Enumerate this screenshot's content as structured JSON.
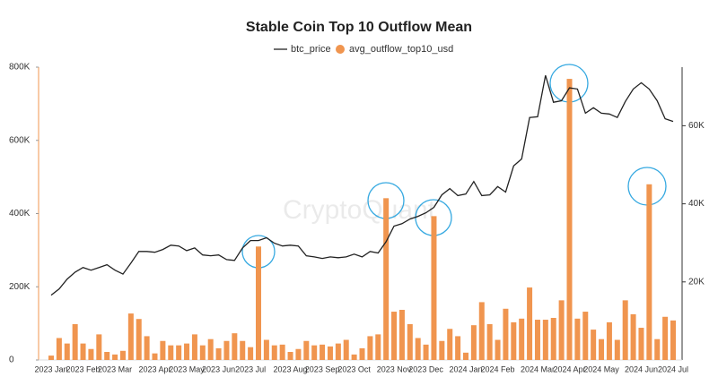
{
  "chart_data": {
    "type": "bar_line",
    "title": "Stable Coin Top 10 Outflow Mean",
    "watermark": "CryptoQuant",
    "categories": [
      "2023 Jan",
      null,
      null,
      null,
      "2023 Feb",
      null,
      null,
      null,
      "2023 Mar",
      null,
      null,
      null,
      null,
      "2023 Apr",
      null,
      null,
      null,
      "2023 May",
      null,
      null,
      null,
      "2023 Jun",
      null,
      null,
      null,
      "2023 Jul",
      null,
      null,
      null,
      null,
      "2023 Aug",
      null,
      null,
      null,
      "2023 Sep",
      null,
      null,
      null,
      "2023 Oct",
      null,
      null,
      null,
      null,
      "2023 Nov",
      null,
      null,
      null,
      "2023 Dec",
      null,
      null,
      null,
      null,
      "2024 Jan",
      null,
      null,
      null,
      "2024 Feb",
      null,
      null,
      null,
      null,
      "2024 Mar",
      null,
      null,
      null,
      "2024 Apr",
      null,
      null,
      null,
      "2024 May",
      null,
      null,
      null,
      null,
      "2024 Jun",
      null,
      null,
      null,
      "2024 Jul"
    ],
    "series": [
      {
        "name": "btc_price",
        "type": "line",
        "axis": "y2",
        "color": "#222222",
        "values": [
          16600,
          18200,
          20700,
          22500,
          23700,
          23000,
          23700,
          24400,
          23000,
          22000,
          24800,
          27800,
          27800,
          27600,
          28300,
          29400,
          29200,
          28000,
          28700,
          26900,
          26700,
          26900,
          25700,
          25500,
          28700,
          30600,
          30600,
          31300,
          29900,
          29200,
          29400,
          29200,
          26700,
          26400,
          26000,
          26400,
          26200,
          26400,
          27100,
          26400,
          27800,
          27400,
          30300,
          34300,
          34900,
          36100,
          36800,
          37700,
          39100,
          42300,
          43900,
          42100,
          42500,
          45700,
          42100,
          42300,
          44400,
          43000,
          49700,
          51500,
          62100,
          62300,
          72900,
          66000,
          66400,
          69700,
          69400,
          63200,
          64600,
          63200,
          63000,
          62100,
          66200,
          69400,
          71000,
          69400,
          66400,
          61800,
          61100
        ]
      },
      {
        "name": "avg_outflow_top10_usd",
        "type": "bar",
        "color": "#f0954f",
        "values": [
          12000,
          60000,
          45000,
          98000,
          45000,
          30000,
          70000,
          22000,
          15000,
          25000,
          127000,
          112000,
          65000,
          18000,
          52000,
          40000,
          40000,
          45000,
          70000,
          40000,
          57000,
          32000,
          52000,
          73000,
          52000,
          35000,
          310000,
          55000,
          40000,
          42000,
          22000,
          30000,
          52000,
          40000,
          42000,
          37000,
          45000,
          55000,
          15000,
          32000,
          65000,
          70000,
          442000,
          132000,
          137000,
          98000,
          60000,
          42000,
          393000,
          52000,
          85000,
          65000,
          20000,
          95000,
          158000,
          98000,
          55000,
          140000,
          103000,
          113000,
          198000,
          110000,
          110000,
          115000,
          163000,
          768000,
          113000,
          132000,
          83000,
          57000,
          103000,
          55000,
          163000,
          125000,
          88000,
          480000,
          57000,
          118000,
          108000
        ]
      }
    ],
    "ylim": [
      0,
      800000
    ],
    "yticks": [
      {
        "value": 0,
        "label": "0"
      },
      {
        "value": 200000,
        "label": "200K"
      },
      {
        "value": 400000,
        "label": "400K"
      },
      {
        "value": 600000,
        "label": "600K"
      },
      {
        "value": 800000,
        "label": "800K"
      }
    ],
    "y2lim": [
      0,
      75000
    ],
    "y2ticks": [
      {
        "value": 20000,
        "label": "20K"
      },
      {
        "value": 40000,
        "label": "40K"
      },
      {
        "value": 60000,
        "label": "60K"
      }
    ],
    "grid": false
  }
}
